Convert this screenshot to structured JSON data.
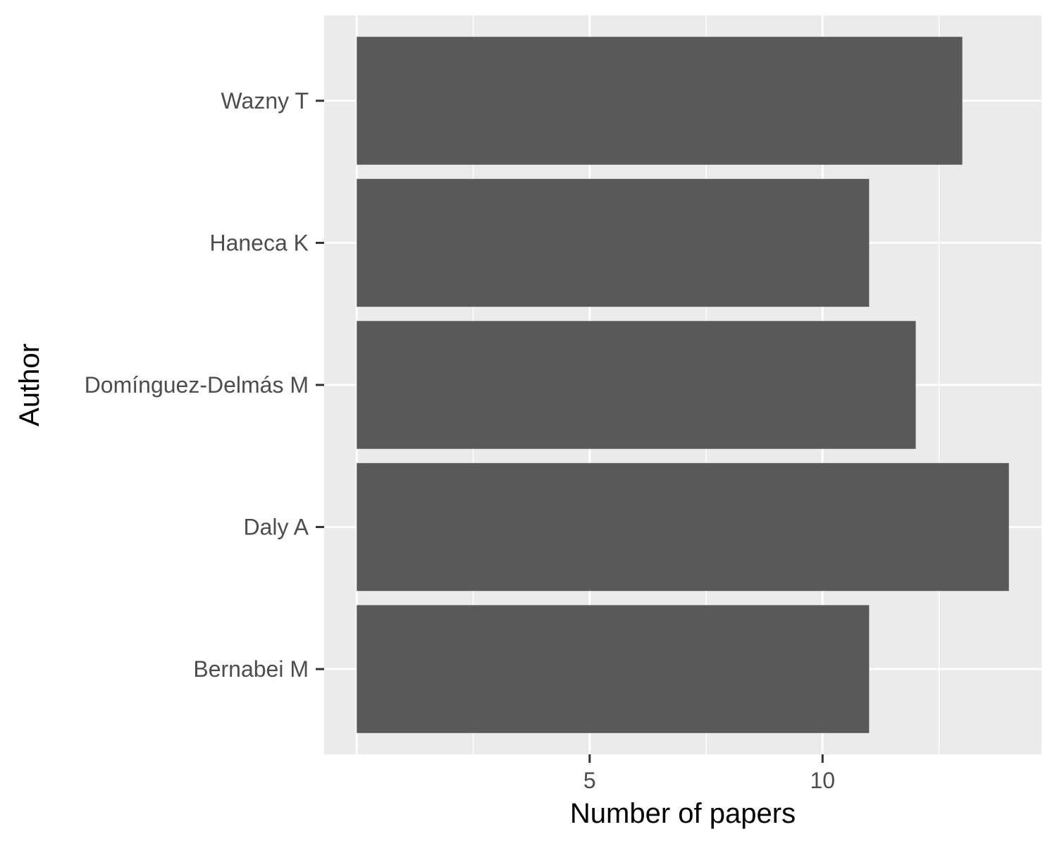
{
  "chart_data": {
    "type": "bar",
    "orientation": "horizontal",
    "title": "",
    "xlabel": "Number of papers",
    "ylabel": "Author",
    "categories": [
      "Bernabei M",
      "Daly A",
      "Domínguez-Delmás M",
      "Haneca K",
      "Wazny T"
    ],
    "values": [
      11,
      14,
      12,
      11,
      13
    ],
    "xlim": [
      -0.7,
      14.7
    ],
    "xticks": [
      5,
      10
    ],
    "xtick_labels": [
      "5",
      "10"
    ],
    "grid": true,
    "legend": "none",
    "colors": {
      "bar": "#595959",
      "panel_background": "#ebebeb",
      "gridline": "#ffffff",
      "tick_label": "#4d4d4d",
      "tick_mark": "#333333",
      "axis_title": "#000000"
    }
  }
}
